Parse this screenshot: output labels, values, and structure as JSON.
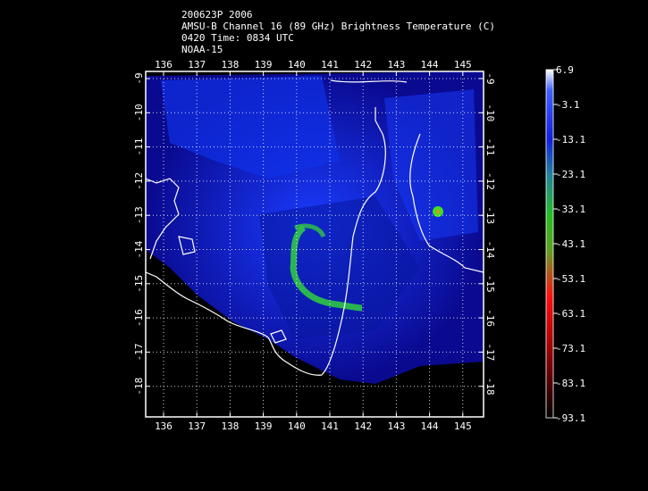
{
  "header": {
    "lines": [
      "200623P 2006",
      "AMSU-B Channel 16 (89 GHz) Brightness Temperature (C)",
      "0420 Time: 0834 UTC",
      "NOAA-15"
    ]
  },
  "map": {
    "lon_ticks": [
      136,
      137,
      138,
      139,
      140,
      141,
      142,
      143,
      144,
      145
    ],
    "lat_ticks": [
      -9,
      -10,
      -11,
      -12,
      -13,
      -14,
      -15,
      -16,
      -17,
      -18
    ]
  },
  "colorbar": {
    "ticks": [
      6.9,
      -3.1,
      -13.1,
      -23.1,
      -33.1,
      -43.1,
      -53.1,
      -63.1,
      -73.1,
      -83.1,
      -93.1
    ]
  }
}
